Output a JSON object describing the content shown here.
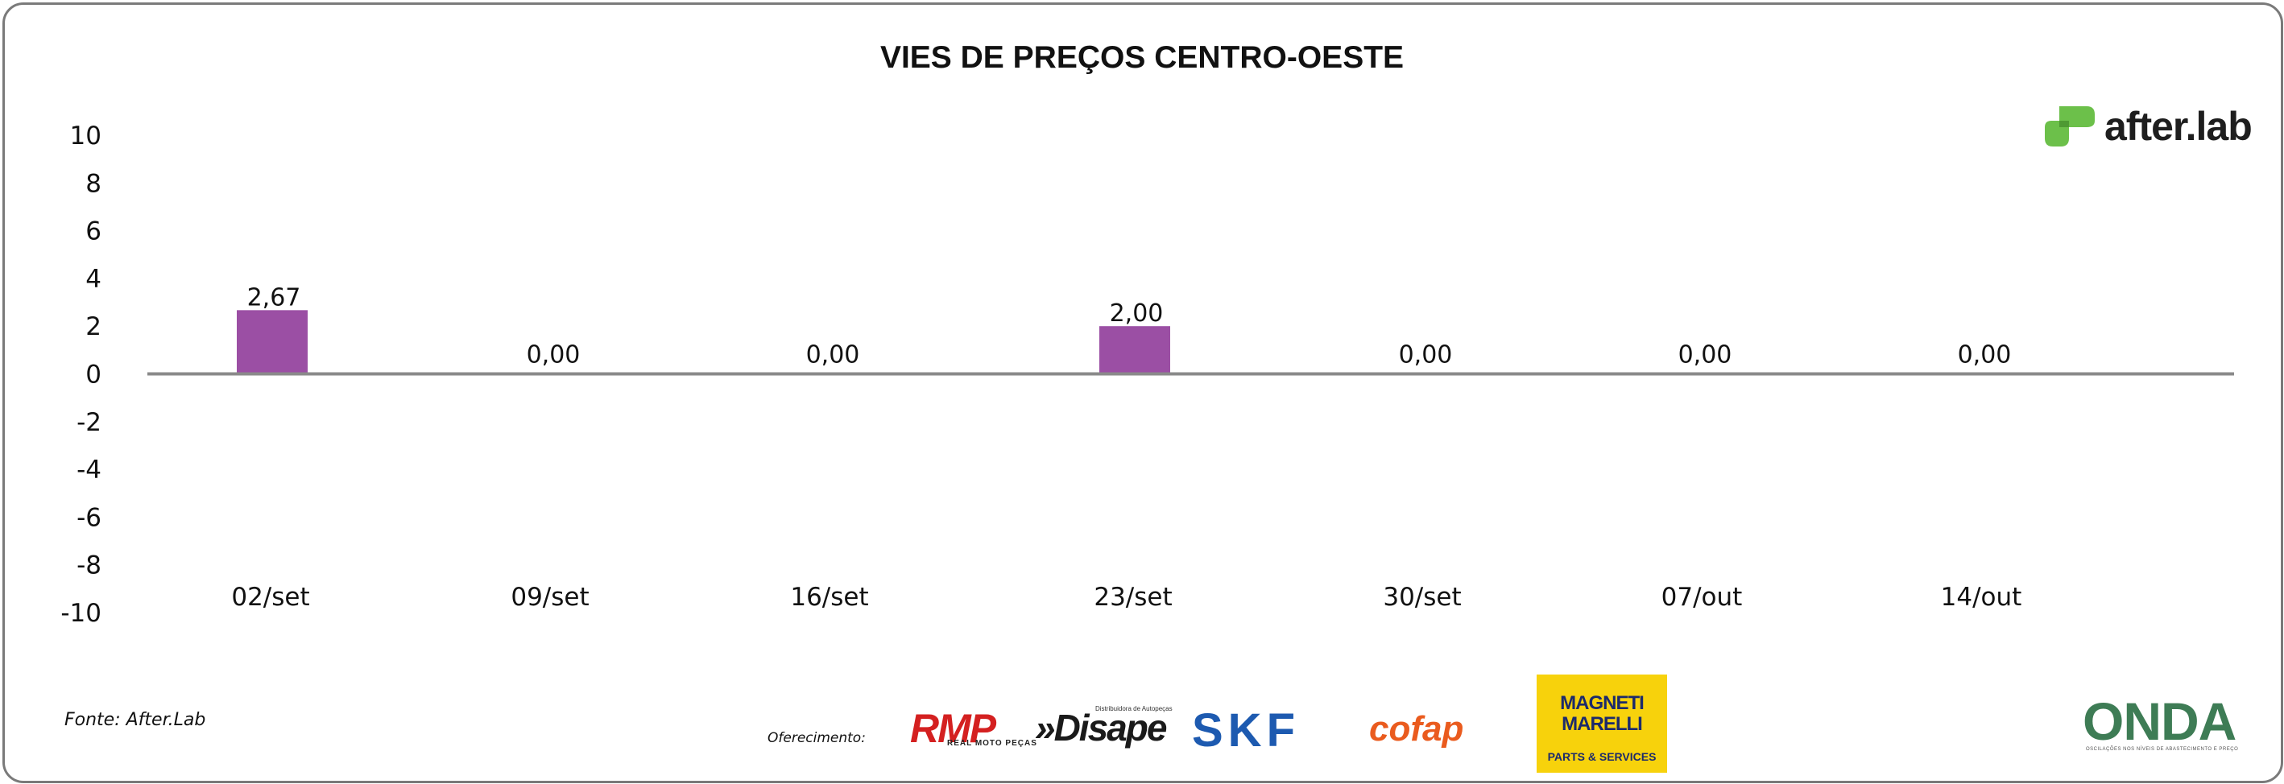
{
  "chart_data": {
    "type": "bar",
    "title": "VIES DE PREÇOS CENTRO-OESTE",
    "categories": [
      "02/set",
      "09/set",
      "16/set",
      "23/set",
      "30/set",
      "07/out",
      "14/out"
    ],
    "values": [
      2.67,
      0.0,
      0.0,
      2.0,
      0.0,
      0.0,
      0.0
    ],
    "data_labels": [
      "2,67",
      "0,00",
      "0,00",
      "2,00",
      "0,00",
      "0,00",
      "0,00"
    ],
    "ylim": [
      -10,
      10
    ],
    "y_ticks": [
      "10",
      "8",
      "6",
      "4",
      "2",
      "0",
      "-2",
      "-4",
      "-6",
      "-8",
      "-10"
    ],
    "xlabel": "",
    "ylabel": "",
    "grid": false,
    "legend": "none",
    "bar_color": "#9b4fa4",
    "axis_color": "#8a8a8a"
  },
  "footer": {
    "source": "Fonte: After.Lab",
    "sponsor_label": "Oferecimento:"
  },
  "logos": {
    "afterlab": {
      "text": "after.lab",
      "icon": "afterlab-leaf-icon",
      "color": "#6cc04a"
    },
    "rmp": {
      "text": "RMP",
      "sub": "REAL MOTO PEÇAS",
      "color": "#d42020"
    },
    "disape": {
      "text": "»Disape",
      "sub": "Distribuidora de Autopeças"
    },
    "skf": {
      "text": "SKF",
      "color": "#1d5ab0"
    },
    "cofap": {
      "text": "cofap",
      "color": "#ea5b1e"
    },
    "magneti_marelli": {
      "line1": "MAGNETI",
      "line2": "MARELLI",
      "line3": "PARTS & SERVICES",
      "bg": "#f7d20c"
    },
    "onda": {
      "text": "ONDA",
      "sub": "OSCILAÇÕES NOS NÍVEIS DE ABASTECIMENTO E PREÇO"
    }
  }
}
